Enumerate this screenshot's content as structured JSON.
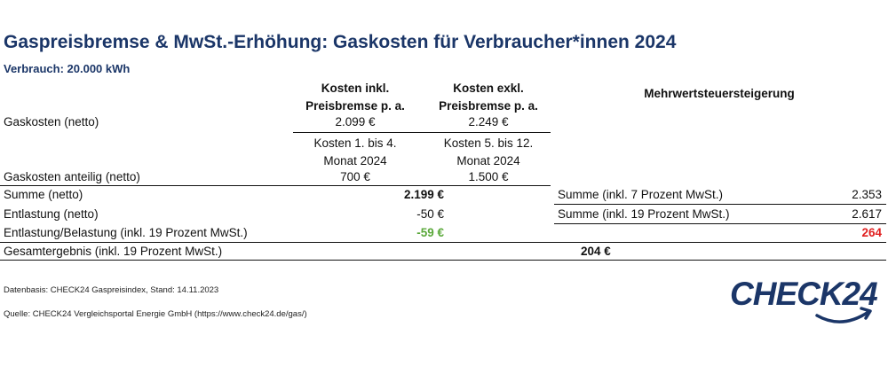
{
  "title": "Gaspreisbremse & MwSt.-Erhöhung: Gaskosten für Verbraucher*innen 2024",
  "subtitle": "Verbrauch: 20.000 kWh",
  "table": {
    "col1_header": [
      "Kosten inkl.",
      "Preisbremse p. a."
    ],
    "col2_header": [
      "Kosten exkl.",
      "Preisbremse p. a."
    ],
    "col1_subheader": [
      "Kosten 1. bis 4.",
      "Monat 2024"
    ],
    "col2_subheader": [
      "Kosten 5. bis 12.",
      "Monat 2024"
    ],
    "right_header": "Mehrwertsteuersteigerung",
    "rows": {
      "gaskosten": {
        "label": "Gaskosten (netto)",
        "col1": "2.099 €",
        "col2": "2.249 €"
      },
      "anteilig": {
        "label": "Gaskosten anteilig (netto)",
        "col1": "700 €",
        "col2": "1.500 €"
      },
      "summe": {
        "label": "Summe (netto)",
        "value": "2.199 €"
      },
      "entlastung": {
        "label": "Entlastung (netto)",
        "value": "-50 €"
      },
      "entlastung_mwst": {
        "label": "Entlastung/Belastung (inkl. 19 Prozent MwSt.)",
        "value": "-59 €"
      },
      "gesamt": {
        "label": "Gesamtergebnis (inkl. 19 Prozent MwSt.)",
        "value": "204 €"
      }
    },
    "right_rows": {
      "summe7": {
        "label": "Summe (inkl. 7 Prozent MwSt.)",
        "value": "2.353"
      },
      "summe19": {
        "label": "Summe (inkl. 19 Prozent MwSt.)",
        "value": "2.617"
      },
      "diff": {
        "value": "264"
      }
    }
  },
  "footer": {
    "datenbasis": "Datenbasis: CHECK24 Gaspreisindex, Stand: 14.11.2023",
    "quelle": "Quelle: CHECK24 Vergleichsportal Energie GmbH (https://www.check24.de/gas/)"
  },
  "logo": {
    "text": "CHECK24"
  },
  "colors": {
    "brand": "#1b3668",
    "positive": "#5aa83a",
    "negative": "#e02020"
  }
}
